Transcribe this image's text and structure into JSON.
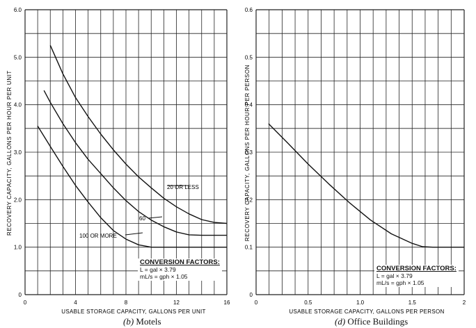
{
  "chart_data": [
    {
      "type": "line",
      "panel": "left",
      "caption_letter": "(b)",
      "caption_text": "Motels",
      "xlabel": "USABLE STORAGE CAPACITY, GALLONS PER UNIT",
      "ylabel": "RECOVERY CAPACITY, GALLONS PER HOUR PER UNIT",
      "xlim": [
        0,
        16
      ],
      "ylim": [
        0,
        6.0
      ],
      "x_ticks": [
        0,
        4,
        8,
        12,
        16
      ],
      "x_tick_labels": [
        "0",
        "4",
        "8",
        "12",
        "16"
      ],
      "y_ticks": [
        0,
        1.0,
        2.0,
        3.0,
        4.0,
        5.0,
        6.0
      ],
      "y_tick_labels": [
        "0",
        "1.0",
        "2.0",
        "3.0",
        "4.0",
        "5.0",
        "6.0"
      ],
      "grid": true,
      "series": [
        {
          "name": "20 OR LESS",
          "x": [
            2,
            3,
            4,
            5,
            6,
            7,
            8,
            9,
            10,
            11,
            12,
            13,
            14,
            15,
            16
          ],
          "y": [
            5.25,
            4.65,
            4.15,
            3.75,
            3.38,
            3.05,
            2.75,
            2.48,
            2.25,
            2.03,
            1.85,
            1.7,
            1.58,
            1.52,
            1.5
          ]
        },
        {
          "name": "60",
          "x": [
            1.5,
            2,
            3,
            4,
            5,
            6,
            7,
            8,
            9,
            10,
            11,
            12,
            13,
            14,
            15,
            16
          ],
          "y": [
            4.3,
            4.05,
            3.6,
            3.2,
            2.85,
            2.55,
            2.25,
            1.98,
            1.75,
            1.57,
            1.43,
            1.32,
            1.26,
            1.25,
            1.25,
            1.25
          ]
        },
        {
          "name": "100 OR MORE",
          "x": [
            1,
            2,
            3,
            4,
            5,
            6,
            7,
            8,
            9,
            10,
            11,
            12,
            16
          ],
          "y": [
            3.55,
            3.12,
            2.7,
            2.3,
            1.95,
            1.62,
            1.35,
            1.17,
            1.05,
            1.0,
            1.0,
            1.0,
            1.0
          ]
        }
      ],
      "annotations": {
        "curve_labels": [
          "20 OR LESS",
          "60",
          "100 OR MORE"
        ]
      },
      "conversion": {
        "title": "CONVERSION FACTORS:",
        "line1": "L = gal × 3.79",
        "line2": "mL/s = gph × 1.05"
      }
    },
    {
      "type": "line",
      "panel": "right",
      "caption_letter": "(d)",
      "caption_text": "Office Buildings",
      "xlabel": "USABLE STORAGE CAPACITY, GALLONS PER PERSON",
      "ylabel": "RECOVERY CAPACITY, GALLONS PER HOUR PER PERSON",
      "xlim": [
        0,
        2
      ],
      "ylim": [
        0,
        0.6
      ],
      "x_ticks": [
        0,
        0.5,
        1.0,
        1.5,
        2
      ],
      "x_tick_labels": [
        "0",
        "0.5",
        "1.0",
        "1.5",
        "2"
      ],
      "y_ticks": [
        0,
        0.1,
        0.2,
        0.3,
        0.4,
        0.5,
        0.6
      ],
      "y_tick_labels": [
        "0",
        "0.1",
        "0.2",
        "0.3",
        "0.4",
        "0.5",
        "0.6"
      ],
      "grid": true,
      "series": [
        {
          "x": [
            0.12,
            0.3,
            0.5,
            0.7,
            0.9,
            1.1,
            1.3,
            1.5,
            1.6,
            1.7,
            2.0
          ],
          "y": [
            0.36,
            0.32,
            0.275,
            0.233,
            0.193,
            0.157,
            0.128,
            0.108,
            0.101,
            0.1,
            0.1
          ]
        }
      ],
      "conversion": {
        "title": "CONVERSION FACTORS:",
        "line1": "L = gal × 3.79",
        "line2": "mL/s = gph × 1.05"
      }
    }
  ]
}
